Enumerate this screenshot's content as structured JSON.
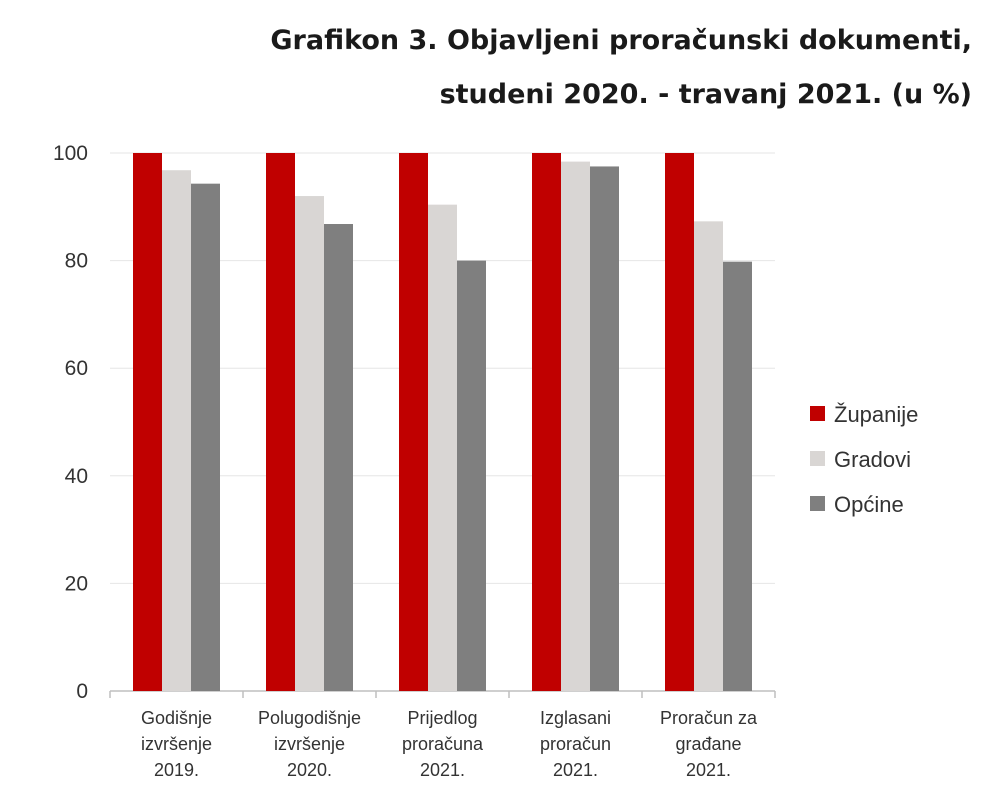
{
  "chart_data": {
    "type": "bar",
    "title_lines": [
      "Grafikon 3. Objavljeni proračunski dokumenti,",
      "studeni 2020. - travanj 2021. (u %)"
    ],
    "categories": [
      [
        "Godišnje",
        "izvršenje",
        "2019."
      ],
      [
        "Polugodišnje",
        "izvršenje",
        "2020."
      ],
      [
        "Prijedlog",
        "proračuna",
        "2021."
      ],
      [
        "Izglasani",
        "proračun",
        "2021."
      ],
      [
        "Proračun za",
        "građane",
        "2021."
      ]
    ],
    "series": [
      {
        "name": "Županije",
        "color": "#c00000",
        "values": [
          100,
          100,
          100,
          100,
          100
        ]
      },
      {
        "name": "Gradovi",
        "color": "#d9d6d4",
        "values": [
          96.8,
          92.0,
          90.4,
          98.4,
          87.3
        ]
      },
      {
        "name": "Općine",
        "color": "#7f7f7f",
        "values": [
          94.3,
          86.8,
          80.0,
          97.5,
          79.8
        ]
      }
    ],
    "ylim": [
      0,
      100
    ],
    "yticks": [
      0,
      20,
      40,
      60,
      80,
      100
    ],
    "grid": true,
    "legend_position": "right"
  }
}
